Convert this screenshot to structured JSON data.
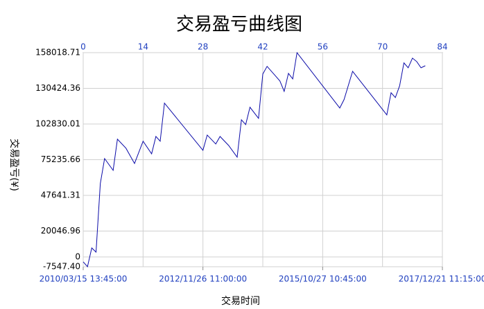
{
  "chart_data": {
    "type": "line",
    "title": "交易盈亏曲线图",
    "x_label": "交易时间",
    "y_label": "交易盈亏(¥)",
    "series": [
      {
        "color": "#0a0aa8",
        "x": [
          0,
          1,
          2,
          3,
          4,
          5,
          7,
          8,
          10,
          12,
          14,
          16,
          17,
          18,
          19,
          28,
          29,
          31,
          32,
          34,
          36,
          37,
          38,
          39,
          41,
          42,
          43,
          45,
          46,
          47,
          48,
          49,
          50,
          60,
          61,
          63,
          71,
          72,
          73,
          74,
          75,
          76,
          77,
          78,
          79,
          80
        ],
        "values": [
          -3750,
          -7500,
          7000,
          3750,
          56800,
          76100,
          67000,
          91100,
          84100,
          72300,
          89500,
          79800,
          93200,
          89500,
          119000,
          82500,
          94300,
          87400,
          93200,
          86300,
          77200,
          106100,
          102400,
          115800,
          107200,
          141500,
          147400,
          139900,
          136100,
          128100,
          142000,
          137700,
          158000,
          115200,
          121700,
          143600,
          109900,
          127000,
          123300,
          132400,
          150100,
          146300,
          153800,
          151100,
          146300,
          147900
        ]
      }
    ],
    "xlim": [
      0,
      84
    ],
    "xticks": [
      0,
      14,
      28,
      42,
      56,
      70,
      84
    ],
    "x2ticks": [
      {
        "value": 0,
        "label": "2010/03/15 13:45:00"
      },
      {
        "value": 28,
        "label": "2012/11/26 11:00:00"
      },
      {
        "value": 56,
        "label": "2015/10/27 10:45:00"
      },
      {
        "value": 84,
        "label": "2017/12/21 11:15:00"
      }
    ],
    "ylim": [
      -7547.4,
      158018.71
    ],
    "yticks": [
      {
        "value": -7547.4,
        "label": "-7547.40"
      },
      0,
      20046.96,
      47641.31,
      75235.66,
      102830.01,
      130424.36,
      158018.71
    ],
    "grid": true
  }
}
